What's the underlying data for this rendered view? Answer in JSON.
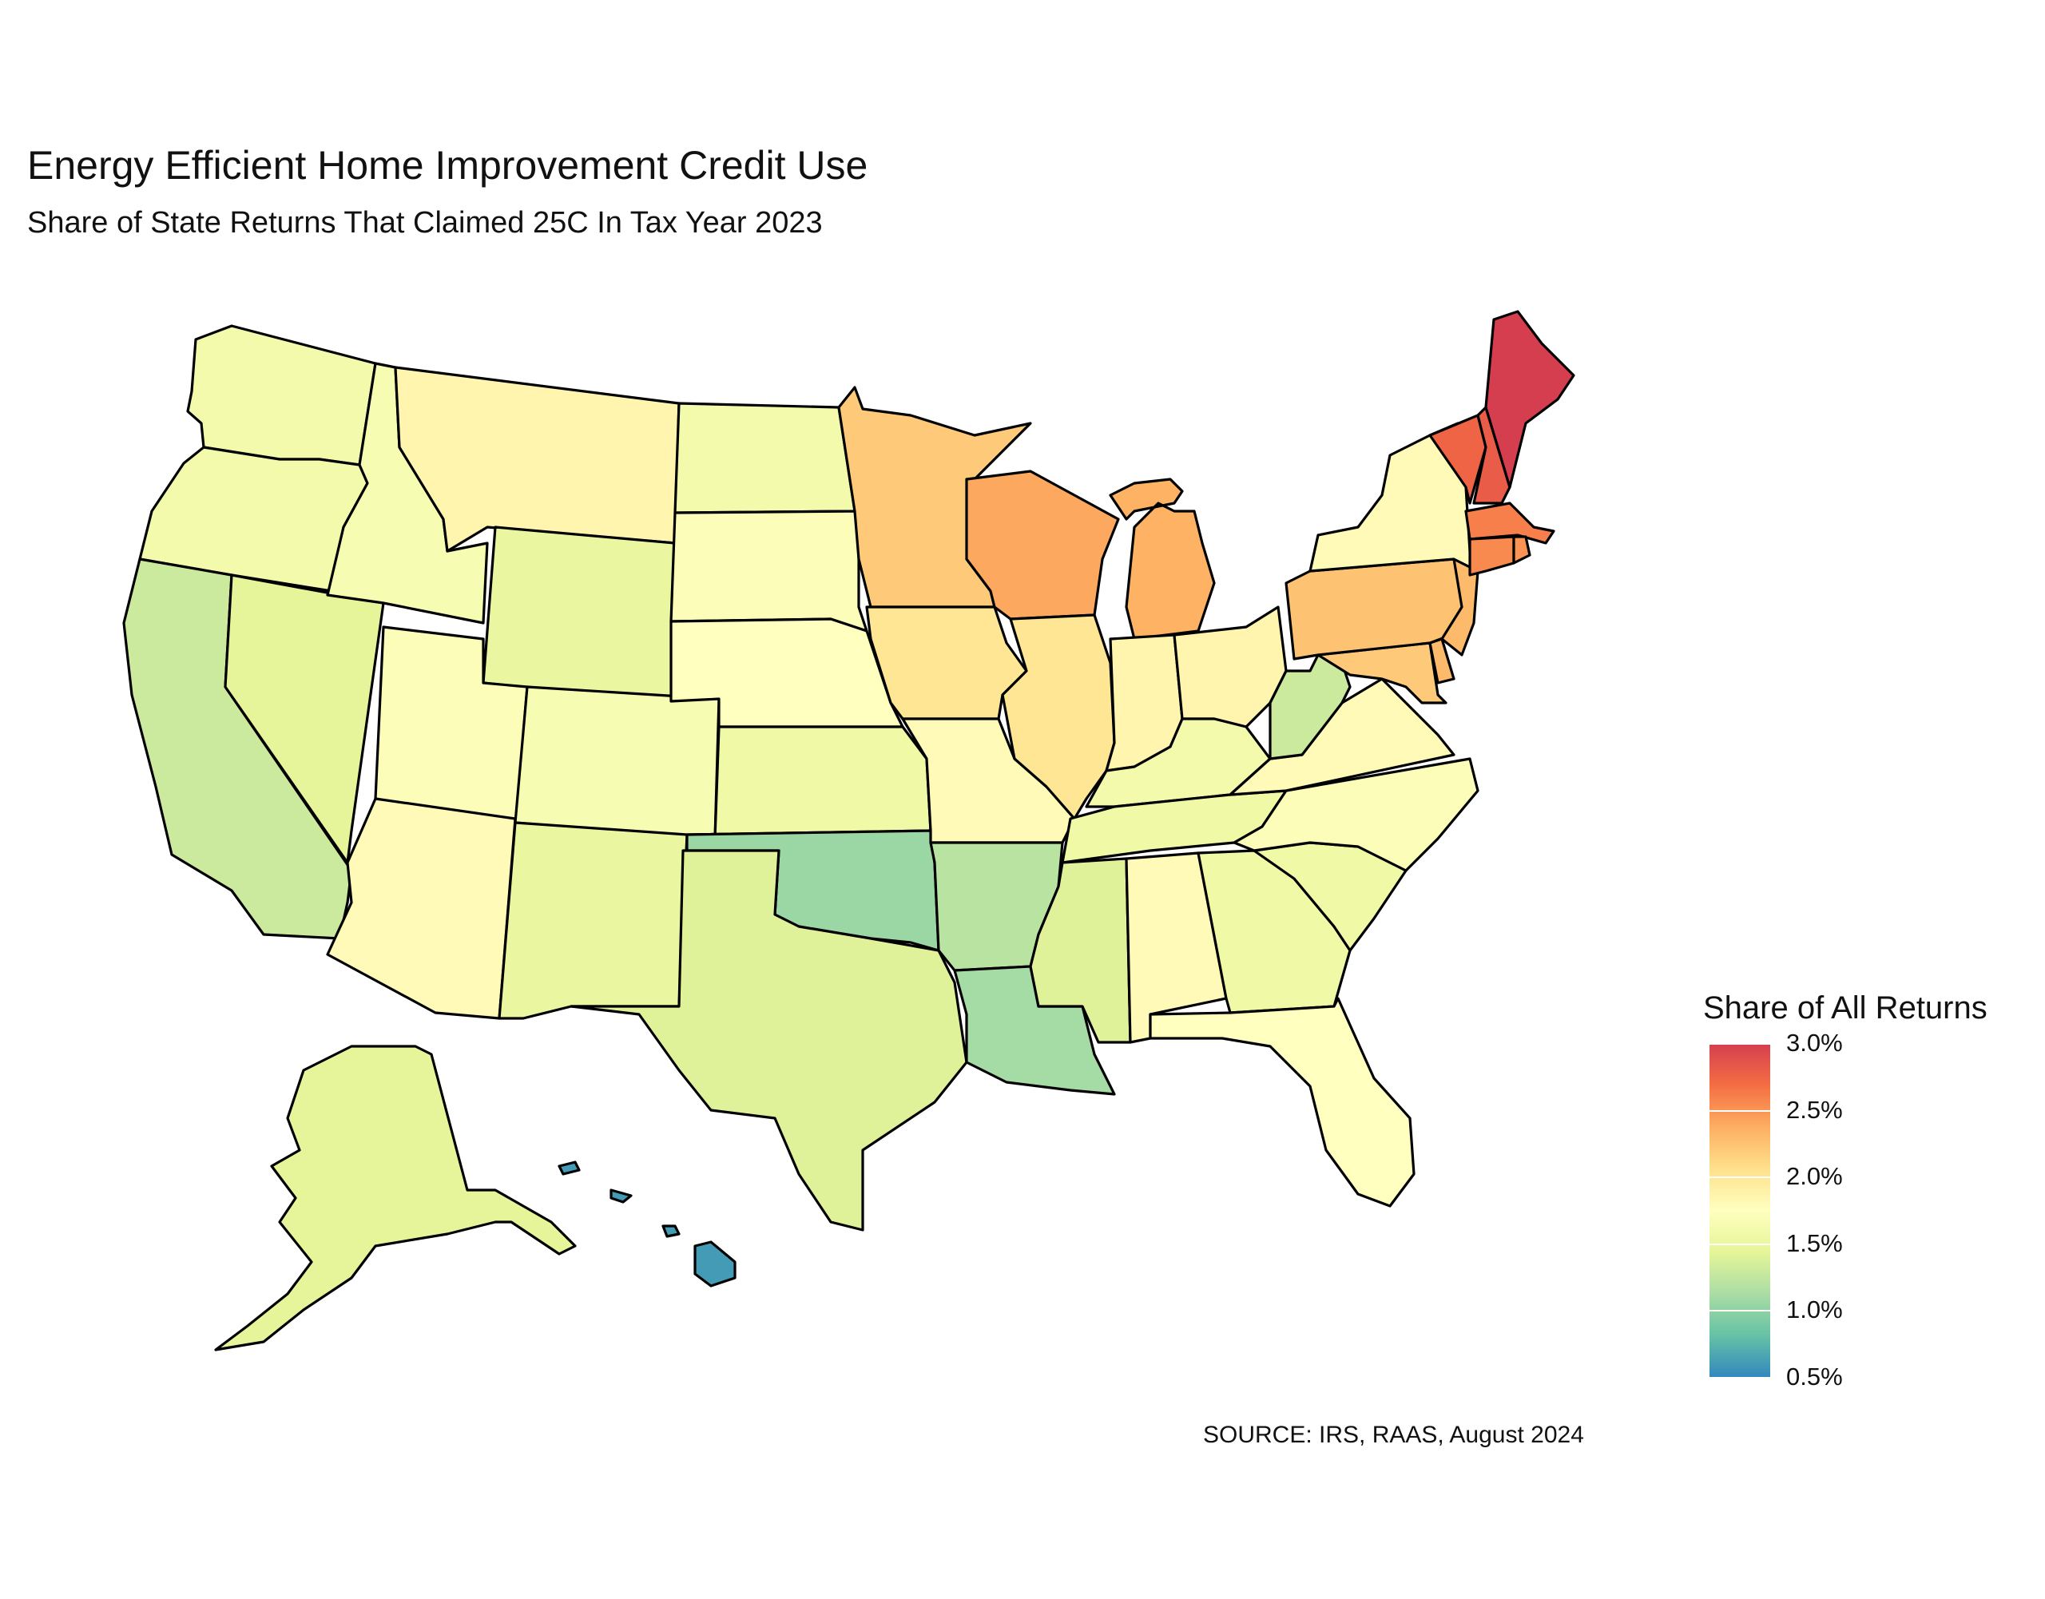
{
  "title": "Energy Efficient Home Improvement Credit Use",
  "subtitle": "Share of State Returns That Claimed 25C In Tax Year 2023",
  "source": "SOURCE: IRS, RAAS, August 2024",
  "legend": {
    "title": "Share of All Returns",
    "min": 0.5,
    "max": 3.0,
    "ticks": [
      "3.0%",
      "2.5%",
      "2.0%",
      "1.5%",
      "1.0%",
      "0.5%"
    ],
    "tick_values": [
      3.0,
      2.5,
      2.0,
      1.5,
      1.0,
      0.5
    ],
    "palette": [
      "#3288bd",
      "#66c2a5",
      "#abdda4",
      "#e6f598",
      "#ffffbf",
      "#fee08b",
      "#fdae61",
      "#f46d43",
      "#d53e4f"
    ]
  },
  "chart_data": {
    "type": "choropleth",
    "unit": "%",
    "states": {
      "WA": 1.6,
      "OR": 1.6,
      "CA": 1.3,
      "NV": 1.45,
      "ID": 1.65,
      "MT": 1.85,
      "WY": 1.5,
      "UT": 1.7,
      "AZ": 1.8,
      "CO": 1.65,
      "NM": 1.5,
      "ND": 1.6,
      "SD": 1.7,
      "NE": 1.75,
      "KS": 1.55,
      "OK": 1.05,
      "TX": 1.4,
      "MN": 2.2,
      "IA": 2.0,
      "MO": 1.8,
      "AR": 1.2,
      "LA": 1.1,
      "WI": 2.4,
      "IL": 2.0,
      "MI": 2.35,
      "IN": 1.85,
      "OH": 1.85,
      "KY": 1.6,
      "TN": 1.55,
      "MS": 1.4,
      "AL": 1.8,
      "GA": 1.55,
      "FL": 1.75,
      "SC": 1.55,
      "NC": 1.7,
      "VA": 1.8,
      "WV": 1.3,
      "PA": 2.25,
      "NY": 1.8,
      "VT": 2.75,
      "NH": 2.8,
      "ME": 3.0,
      "MA": 2.6,
      "CT": 2.55,
      "RI": 2.5,
      "NJ": 2.3,
      "DE": 2.3,
      "MD": 2.2,
      "AK": 1.45,
      "HI": 0.6
    }
  }
}
